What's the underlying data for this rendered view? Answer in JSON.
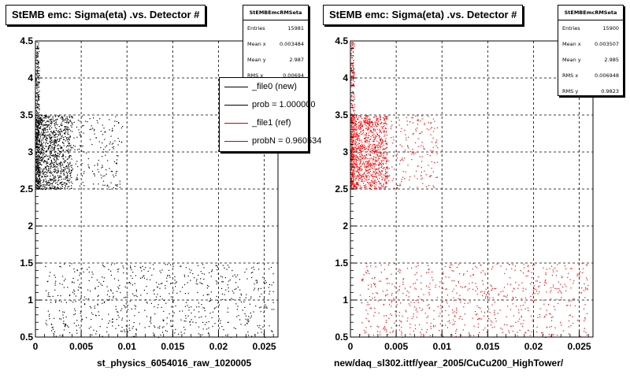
{
  "colors": {
    "ref_marker": "#000000",
    "new_marker": "#ff0000",
    "grid": "#000000"
  },
  "chart_data": [
    {
      "type": "scatter",
      "title": "StEMB emc: Sigma(eta) .vs. Detector #",
      "xlabel": "st_physics_6054016_raw_1020005",
      "ylabel": "",
      "xlim": [
        0,
        0.0265
      ],
      "ylim": [
        0.5,
        4.5
      ],
      "x_ticks": [
        "0",
        "0.005",
        "0.01",
        "0.015",
        "0.02",
        "0.025"
      ],
      "y_ticks": [
        "0.5",
        "1",
        "1.5",
        "2",
        "2.5",
        "3",
        "3.5",
        "4",
        "4.5"
      ],
      "grid": true,
      "stats": {
        "name": "StEMBEmcRMSeta",
        "rows": [
          {
            "label": "Entries",
            "value": "15981"
          },
          {
            "label": "Mean x",
            "value": "0.003484"
          },
          {
            "label": "Mean y",
            "value": "2.987"
          },
          {
            "label": "RMS x",
            "value": "0.00694"
          }
        ]
      },
      "legend": {
        "placement": "top-right",
        "entries": [
          {
            "label": "_file0 (new)",
            "color": "#000000"
          },
          {
            "label": "prob = 1.000000",
            "color": "#000000"
          },
          {
            "label": "_file1 (ref)",
            "color": "#cc0000"
          },
          {
            "label": "probN = 0.960534",
            "color": "#cc0000"
          }
        ]
      },
      "series": [
        {
          "name": "_file0 (new)",
          "color": "#000000",
          "clusters": [
            {
              "x": [
                0,
                0.0004
              ],
              "y": [
                2.5,
                4.5
              ],
              "density": "very high"
            },
            {
              "x": [
                0,
                0.004
              ],
              "y": [
                2.5,
                3.5
              ],
              "density": "high"
            },
            {
              "x": [
                0.004,
                0.0095
              ],
              "y": [
                2.5,
                3.5
              ],
              "density": "low"
            },
            {
              "x": [
                0.001,
                0.026
              ],
              "y": [
                0.5,
                1.5
              ],
              "density": "sparse"
            }
          ]
        }
      ]
    },
    {
      "type": "scatter",
      "title": "StEMB emc: Sigma(eta) .vs. Detector #",
      "xlabel": "new/daq_sl302.ittf/year_2005/CuCu200_HighTower/",
      "ylabel": "",
      "xlim": [
        0,
        0.0265
      ],
      "ylim": [
        0.5,
        4.5
      ],
      "x_ticks": [
        "0",
        "0.005",
        "0.01",
        "0.015",
        "0.02",
        "0.025"
      ],
      "y_ticks": [
        "0.5",
        "1",
        "1.5",
        "2",
        "2.5",
        "3",
        "3.5",
        "4",
        "4.5"
      ],
      "grid": true,
      "stats": {
        "name": "StEMBEmcRMSeta",
        "rows": [
          {
            "label": "Entries",
            "value": "15900"
          },
          {
            "label": "Mean x",
            "value": "0.003507"
          },
          {
            "label": "Mean y",
            "value": "2.985"
          },
          {
            "label": "RMS x",
            "value": "0.006948"
          },
          {
            "label": "RMS y",
            "value": "0.9823"
          }
        ]
      },
      "series": [
        {
          "name": "_file1 (ref)",
          "color": "#ff0000",
          "clusters": [
            {
              "x": [
                0,
                0.0004
              ],
              "y": [
                2.5,
                4.5
              ],
              "density": "very high"
            },
            {
              "x": [
                0,
                0.004
              ],
              "y": [
                2.5,
                3.5
              ],
              "density": "high"
            },
            {
              "x": [
                0.004,
                0.0095
              ],
              "y": [
                2.5,
                3.5
              ],
              "density": "low"
            },
            {
              "x": [
                0.001,
                0.026
              ],
              "y": [
                0.5,
                1.5
              ],
              "density": "sparse"
            }
          ]
        }
      ]
    }
  ]
}
